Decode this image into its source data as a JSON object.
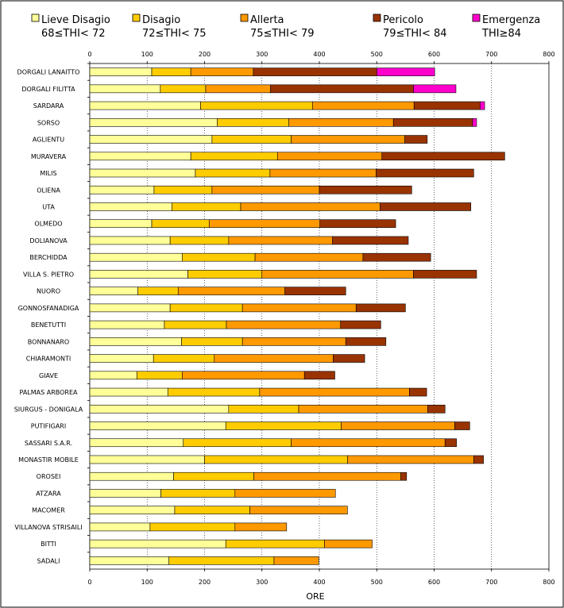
{
  "chart_data": {
    "type": "bar",
    "orientation": "horizontal",
    "stacked": true,
    "title": "",
    "xlabel": "ORE",
    "ylabel": "",
    "xlim": [
      0,
      800
    ],
    "xticks": [
      0,
      100,
      200,
      300,
      400,
      500,
      600,
      700,
      800
    ],
    "grid": true,
    "legend_position": "top",
    "categories": [
      "DORGALI LANAITTO",
      "DORGALI FILITTA",
      "SARDARA",
      "SORSO",
      "AGLIENTU",
      "MURAVERA",
      "MILIS",
      "OLIENA",
      "UTA",
      "OLMEDO",
      "DOLIANOVA",
      "BERCHIDDA",
      "VILLA S. PIETRO",
      "NUORO",
      "GONNOSFANADIGA",
      "BENETUTTI",
      "BONNANARO",
      "CHIARAMONTI",
      "GIAVE",
      "PALMAS ARBOREA",
      "SIURGUS - DONIGALA",
      "PUTIFIGARI",
      "SASSARI S.A.R.",
      "MONASTIR MOBILE",
      "OROSEI",
      "ATZARA",
      "MACOMER",
      "VILLANOVA STRISAILI",
      "BITTI",
      "SADALI"
    ],
    "series": [
      {
        "name": "Lieve Disagio",
        "range_label": "68≤THI< 72",
        "color": "#FFFF99",
        "values": [
          108,
          123,
          193,
          222,
          213,
          176,
          184,
          112,
          143,
          108,
          140,
          161,
          171,
          84,
          140,
          130,
          160,
          111,
          82,
          136,
          242,
          237,
          163,
          200,
          146,
          124,
          148,
          105,
          237,
          138
        ]
      },
      {
        "name": "Disagio",
        "range_label": "72≤THI< 75",
        "color": "#FFCC00",
        "values": [
          68,
          79,
          195,
          125,
          138,
          151,
          130,
          101,
          120,
          100,
          102,
          127,
          129,
          70,
          126,
          108,
          106,
          106,
          79,
          160,
          122,
          201,
          188,
          249,
          140,
          129,
          131,
          148,
          172,
          183
        ]
      },
      {
        "name": "Allerta",
        "range_label": "75≤THI< 79",
        "color": "#FF9900",
        "values": [
          109,
          113,
          177,
          182,
          198,
          182,
          185,
          187,
          243,
          193,
          181,
          188,
          264,
          186,
          198,
          199,
          180,
          207,
          213,
          261,
          225,
          198,
          268,
          220,
          256,
          175,
          170,
          90,
          83,
          78
        ]
      },
      {
        "name": "Pericolo",
        "range_label": "79≤THI< 84",
        "color": "#993300",
        "values": [
          215,
          249,
          115,
          138,
          39,
          214,
          170,
          161,
          158,
          132,
          132,
          118,
          110,
          106,
          86,
          70,
          70,
          55,
          53,
          30,
          30,
          26,
          20,
          17,
          10,
          0,
          0,
          0,
          0,
          0
        ]
      },
      {
        "name": "Emergenza",
        "range_label": "THI≥84",
        "color": "#FF00CC",
        "values": [
          101,
          74,
          8,
          7,
          0,
          0,
          0,
          0,
          0,
          0,
          0,
          0,
          0,
          0,
          0,
          0,
          0,
          0,
          0,
          0,
          0,
          0,
          0,
          0,
          0,
          0,
          0,
          0,
          0,
          0
        ]
      }
    ]
  }
}
